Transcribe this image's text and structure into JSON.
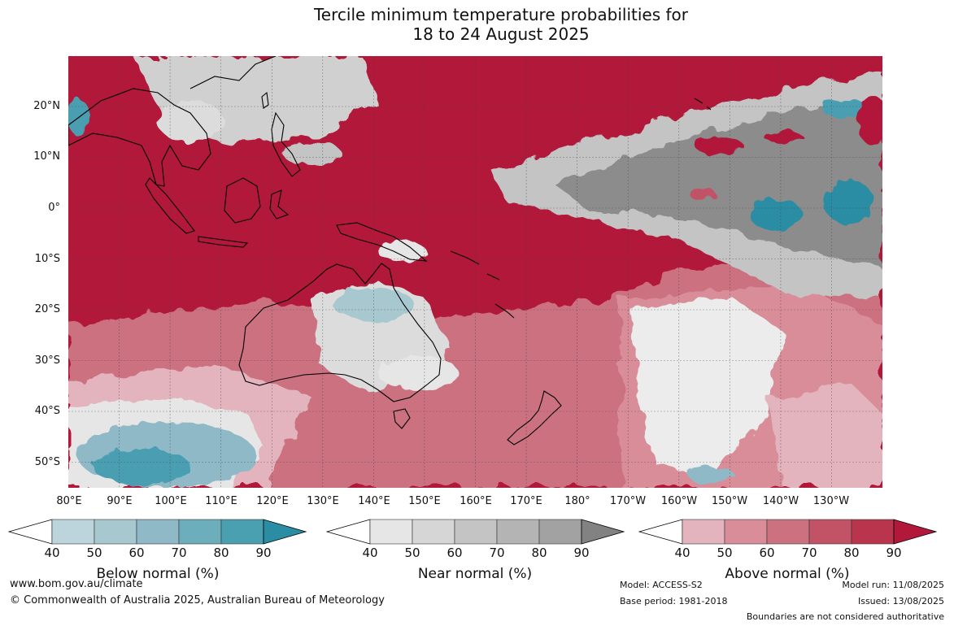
{
  "title": {
    "line1": "Tercile minimum temperature probabilities for",
    "line2": "18 to 24 August 2025"
  },
  "lat_labels": [
    "20°N",
    "10°N",
    "0°",
    "10°S",
    "20°S",
    "30°S",
    "40°S",
    "50°S"
  ],
  "lon_labels": [
    "80°E",
    "90°E",
    "100°E",
    "110°E",
    "120°E",
    "130°E",
    "140°E",
    "150°E",
    "160°E",
    "170°E",
    "180°",
    "170°W",
    "160°W",
    "150°W",
    "140°W",
    "130°W"
  ],
  "map": {
    "extent": "80°E to 120°W, 30°N to 55°S",
    "grid": true,
    "colors": {
      "above_dominant": "#b2183a",
      "near_dominant": "#8c8c8c",
      "below_dominant": "#2b8da3",
      "coastline": "#000000",
      "border": "#888888"
    }
  },
  "colorbars": [
    {
      "name": "below",
      "label": "Below normal (%)",
      "ticks": [
        "40",
        "50",
        "60",
        "70",
        "80",
        "90"
      ],
      "colors": [
        "#ffffff",
        "#bcd4dc",
        "#a7c8cf",
        "#8fb9c6",
        "#6caebc",
        "#4a9fb1",
        "#2b8da3"
      ]
    },
    {
      "name": "near",
      "label": "Near normal (%)",
      "ticks": [
        "40",
        "50",
        "60",
        "70",
        "80",
        "90"
      ],
      "colors": [
        "#ffffff",
        "#e6e6e6",
        "#d6d6d6",
        "#c4c4c4",
        "#b4b4b4",
        "#a2a2a2",
        "#828282"
      ]
    },
    {
      "name": "above",
      "label": "Above normal (%)",
      "ticks": [
        "40",
        "50",
        "60",
        "70",
        "80",
        "90"
      ],
      "colors": [
        "#ffffff",
        "#e3b4bd",
        "#d98d98",
        "#cc7180",
        "#c25366",
        "#b8354d",
        "#b2183a"
      ]
    }
  ],
  "footer": {
    "website": "www.bom.gov.au/climate",
    "copyright": "© Commonwealth of Australia 2025, Australian Bureau of Meteorology",
    "model": "Model: ACCESS-S2",
    "base_period": "Base period: 1981-2018",
    "model_run": "Model run: 11/08/2025",
    "issued": "Issued: 13/08/2025",
    "disclaimer": "Boundaries are not considered authoritative"
  }
}
